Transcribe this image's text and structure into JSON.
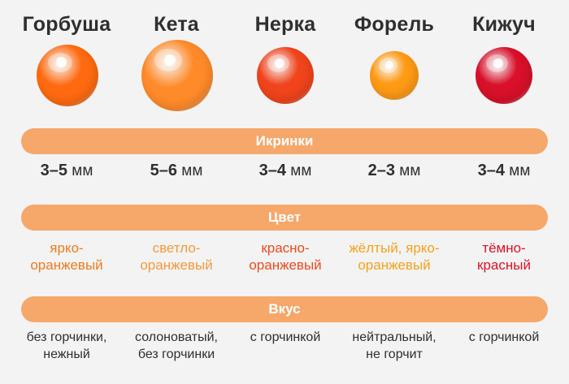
{
  "sections": {
    "grains": "Икринки",
    "color": "Цвет",
    "taste": "Вкус"
  },
  "unit": "мм",
  "fish": [
    {
      "name": "Горбуша",
      "size": "3–5",
      "color_lines": [
        "ярко-",
        "оранжевый"
      ],
      "color_hex": "#f07a1f",
      "taste_lines": [
        "без горчинки,",
        "нежный"
      ],
      "egg_color": "#ff6a10"
    },
    {
      "name": "Кета",
      "size": "5–6",
      "color_lines": [
        "светло-",
        "оранжевый"
      ],
      "color_hex": "#f59a3c",
      "taste_lines": [
        "солоноватый,",
        "без горчинки"
      ],
      "egg_color": "#ff8a2a"
    },
    {
      "name": "Нерка",
      "size": "3–4",
      "color_lines": [
        "красно-",
        "оранжевый"
      ],
      "color_hex": "#ef4a1f",
      "taste_lines": [
        "с горчинкой",
        ""
      ],
      "egg_color": "#f0441c"
    },
    {
      "name": "Форель",
      "size": "2–3",
      "color_lines": [
        "жёлтый, ярко-",
        "оранжевый"
      ],
      "color_hex": "#f3a21e",
      "taste_lines": [
        "нейтральный,",
        "не горчит"
      ],
      "egg_color": "#ff9a14"
    },
    {
      "name": "Кижуч",
      "size": "3–4",
      "color_lines": [
        "тёмно-",
        "красный"
      ],
      "color_hex": "#d81428",
      "taste_lines": [
        "с горчинкой",
        ""
      ],
      "egg_color": "#d8102a"
    }
  ]
}
